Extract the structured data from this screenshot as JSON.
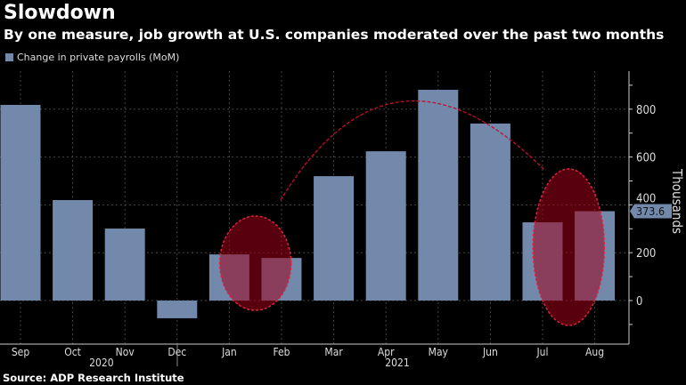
{
  "header": {
    "title": "Slowdown",
    "subtitle": "By one measure, job growth at U.S. companies moderated over the past two months"
  },
  "source": "Source: ADP Research Institute",
  "chart_data": {
    "type": "bar",
    "title": "Slowdown",
    "subtitle": "By one measure, job growth at U.S. companies moderated over the past two months",
    "categories": [
      "Sep",
      "Oct",
      "Nov",
      "Dec",
      "Jan",
      "Feb",
      "Mar",
      "Apr",
      "May",
      "Jun",
      "Jul",
      "Aug"
    ],
    "year_labels": [
      {
        "label": "2020",
        "months": [
          "Sep",
          "Oct",
          "Nov",
          "Dec"
        ]
      },
      {
        "label": "2021",
        "months": [
          "Jan",
          "Feb",
          "Mar",
          "Apr",
          "May",
          "Jun",
          "Jul",
          "Aug"
        ]
      }
    ],
    "series": [
      {
        "name": "Change in private payrolls (MoM)",
        "color": "#7289ab",
        "values": [
          818,
          420,
          301,
          -74,
          193,
          178,
          520,
          624,
          881,
          740,
          327,
          373.6
        ]
      }
    ],
    "last_value_label": "373.6",
    "ylabel": "Thousands",
    "yticks": [
      0,
      200,
      400,
      600,
      800
    ],
    "ylim": [
      -182,
      959
    ],
    "y_axis_position": "right",
    "grid": true,
    "legend_position": "top-left",
    "annotations": [
      {
        "type": "ellipse",
        "around": [
          "Jan",
          "Feb"
        ],
        "color": "#c0102a"
      },
      {
        "type": "ellipse",
        "around": [
          "Jul",
          "Aug"
        ],
        "color": "#c0102a"
      },
      {
        "type": "dashed-arc",
        "from": "Feb",
        "to": "Jul",
        "color": "#c0102a"
      }
    ]
  }
}
